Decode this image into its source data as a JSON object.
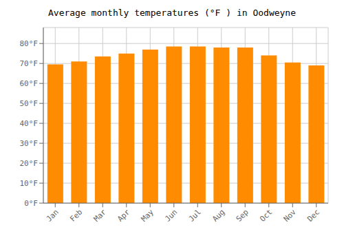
{
  "chart_data": {
    "type": "bar",
    "title": "Average monthly temperatures (°F ) in Oodweyne",
    "categories": [
      "Jan",
      "Feb",
      "Mar",
      "Apr",
      "May",
      "Jun",
      "Jul",
      "Aug",
      "Sep",
      "Oct",
      "Nov",
      "Dec"
    ],
    "values": [
      69.5,
      71.0,
      73.5,
      75.0,
      77.0,
      78.5,
      78.5,
      78.0,
      78.0,
      74.0,
      70.5,
      69.0
    ],
    "color": "#FF8C00",
    "ylim": [
      0,
      88
    ],
    "yticks": [
      {
        "value": 0,
        "label": "0°F"
      },
      {
        "value": 10,
        "label": "10°F"
      },
      {
        "value": 20,
        "label": "20°F"
      },
      {
        "value": 30,
        "label": "30°F"
      },
      {
        "value": 40,
        "label": "40°F"
      },
      {
        "value": 50,
        "label": "50°F"
      },
      {
        "value": 60,
        "label": "60°F"
      },
      {
        "value": 70,
        "label": "70°F"
      },
      {
        "value": 80,
        "label": "80°F"
      }
    ],
    "grid": true
  }
}
